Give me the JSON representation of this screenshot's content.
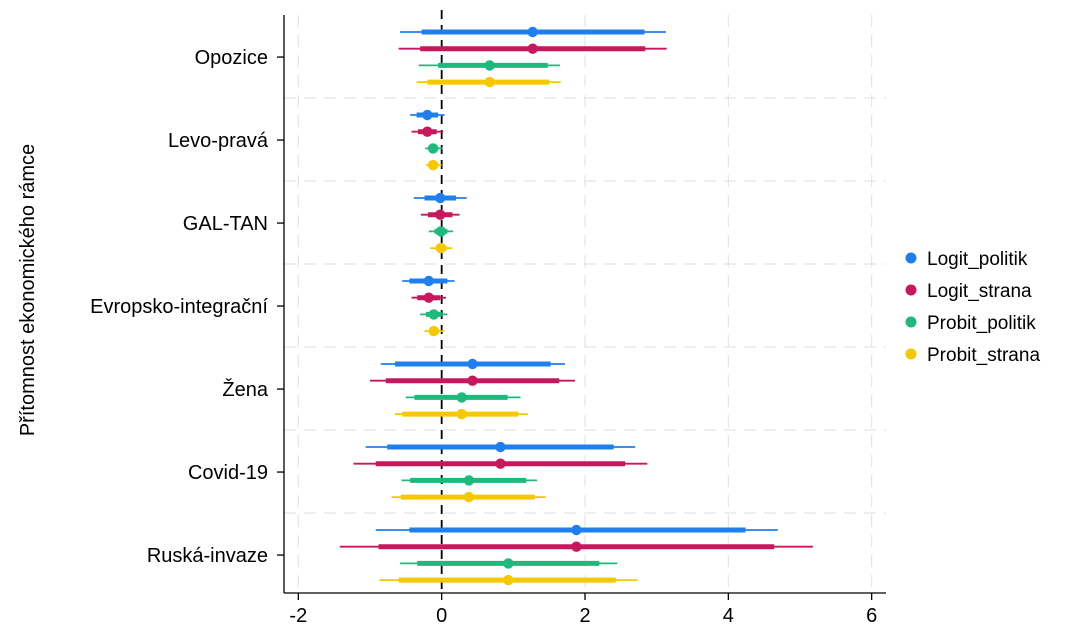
{
  "chart_data": {
    "type": "coefficient-plot",
    "orientation": "horizontal",
    "ylabel": "Přítomnost ekonomického rámce",
    "xlabel": "",
    "xlim": [
      -2.2,
      6.2
    ],
    "xticks": [
      -2,
      0,
      2,
      4,
      6
    ],
    "reference_line_x": 0,
    "grid": true,
    "legend_position": "right",
    "categories": [
      "Opozice",
      "Levo-pravá",
      "GAL-TAN",
      "Evropsko-integrační",
      "Žena",
      "Covid-19",
      "Ruská-invaze"
    ],
    "series": [
      {
        "name": "Logit_politik",
        "color": "#1f7fef",
        "estimates": [
          1.27,
          -0.2,
          -0.02,
          -0.18,
          0.43,
          0.82,
          1.88
        ],
        "ci_inner": [
          [
            -0.28,
            2.83
          ],
          [
            -0.35,
            -0.05
          ],
          [
            -0.24,
            0.2
          ],
          [
            -0.45,
            0.08
          ],
          [
            -0.65,
            1.52
          ],
          [
            -0.76,
            2.4
          ],
          [
            -0.45,
            4.24
          ]
        ],
        "ci_outer": [
          [
            -0.58,
            3.13
          ],
          [
            -0.44,
            0.04
          ],
          [
            -0.39,
            0.35
          ],
          [
            -0.55,
            0.18
          ],
          [
            -0.85,
            1.72
          ],
          [
            -1.06,
            2.7
          ],
          [
            -0.92,
            4.69
          ]
        ]
      },
      {
        "name": "Logit_strana",
        "color": "#c8175d",
        "estimates": [
          1.27,
          -0.2,
          -0.02,
          -0.18,
          0.43,
          0.82,
          1.88
        ],
        "ci_inner": [
          [
            -0.3,
            2.84
          ],
          [
            -0.33,
            -0.07
          ],
          [
            -0.19,
            0.15
          ],
          [
            -0.34,
            -0.02
          ],
          [
            -0.78,
            1.64
          ],
          [
            -0.92,
            2.56
          ],
          [
            -0.88,
            4.64
          ]
        ],
        "ci_outer": [
          [
            -0.6,
            3.14
          ],
          [
            -0.42,
            0.02
          ],
          [
            -0.29,
            0.25
          ],
          [
            -0.42,
            0.06
          ],
          [
            -1.0,
            1.86
          ],
          [
            -1.23,
            2.87
          ],
          [
            -1.42,
            5.18
          ]
        ]
      },
      {
        "name": "Probit_politik",
        "color": "#1db97d",
        "estimates": [
          0.67,
          -0.12,
          -0.01,
          -0.11,
          0.28,
          0.38,
          0.93
        ],
        "ci_inner": [
          [
            -0.05,
            1.48
          ],
          [
            -0.17,
            -0.05
          ],
          [
            -0.1,
            0.08
          ],
          [
            -0.22,
            0.0
          ],
          [
            -0.38,
            0.92
          ],
          [
            -0.44,
            1.18
          ],
          [
            -0.34,
            2.2
          ]
        ],
        "ci_outer": [
          [
            -0.32,
            1.65
          ],
          [
            -0.23,
            0.01
          ],
          [
            -0.18,
            0.16
          ],
          [
            -0.3,
            0.08
          ],
          [
            -0.5,
            1.1
          ],
          [
            -0.56,
            1.33
          ],
          [
            -0.58,
            2.45
          ]
        ]
      },
      {
        "name": "Probit_strana",
        "color": "#f5c800",
        "estimates": [
          0.67,
          -0.12,
          -0.01,
          -0.11,
          0.28,
          0.38,
          0.93
        ],
        "ci_inner": [
          [
            -0.2,
            1.5
          ],
          [
            -0.17,
            -0.05
          ],
          [
            -0.08,
            0.07
          ],
          [
            -0.16,
            -0.04
          ],
          [
            -0.55,
            1.07
          ],
          [
            -0.57,
            1.3
          ],
          [
            -0.6,
            2.43
          ]
        ],
        "ci_outer": [
          [
            -0.35,
            1.66
          ],
          [
            -0.22,
            0.0
          ],
          [
            -0.16,
            0.15
          ],
          [
            -0.24,
            0.04
          ],
          [
            -0.65,
            1.2
          ],
          [
            -0.7,
            1.45
          ],
          [
            -0.87,
            2.73
          ]
        ]
      }
    ]
  }
}
